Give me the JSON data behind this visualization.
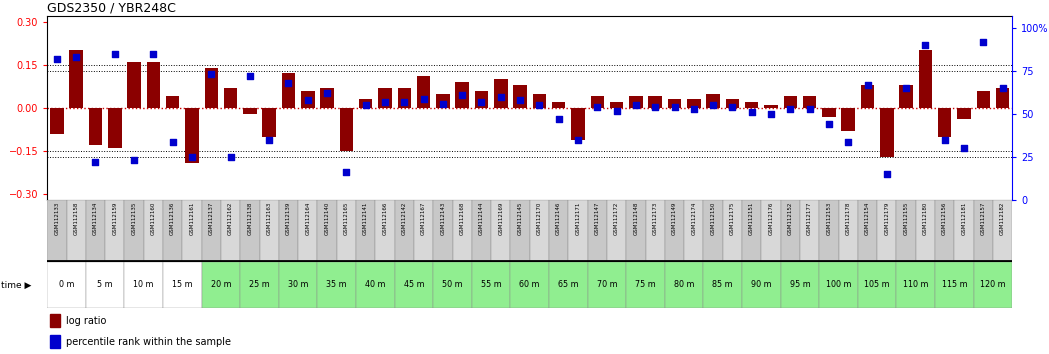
{
  "title": "GDS2350 / YBR248C",
  "gsm_labels": [
    "GSM112133",
    "GSM112158",
    "GSM112134",
    "GSM112159",
    "GSM112135",
    "GSM112160",
    "GSM112136",
    "GSM112161",
    "GSM112137",
    "GSM112162",
    "GSM112138",
    "GSM112163",
    "GSM112139",
    "GSM112164",
    "GSM112140",
    "GSM112165",
    "GSM112141",
    "GSM112166",
    "GSM112142",
    "GSM112167",
    "GSM112143",
    "GSM112168",
    "GSM112144",
    "GSM112169",
    "GSM112145",
    "GSM112170",
    "GSM112146",
    "GSM112171",
    "GSM112147",
    "GSM112172",
    "GSM112148",
    "GSM112173",
    "GSM112149",
    "GSM112174",
    "GSM112150",
    "GSM112175",
    "GSM112151",
    "GSM112176",
    "GSM112152",
    "GSM112177",
    "GSM112153",
    "GSM112178",
    "GSM112154",
    "GSM112179",
    "GSM112155",
    "GSM112180",
    "GSM112156",
    "GSM112181",
    "GSM112157",
    "GSM112182"
  ],
  "time_labels": [
    "0 m",
    "5 m",
    "10 m",
    "15 m",
    "20 m",
    "25 m",
    "30 m",
    "35 m",
    "40 m",
    "45 m",
    "50 m",
    "55 m",
    "60 m",
    "65 m",
    "70 m",
    "75 m",
    "80 m",
    "85 m",
    "90 m",
    "95 m",
    "100 m",
    "105 m",
    "110 m",
    "115 m",
    "120 m"
  ],
  "log_ratio": [
    -0.09,
    0.2,
    -0.13,
    -0.14,
    0.16,
    0.16,
    0.04,
    -0.19,
    0.14,
    0.07,
    -0.02,
    -0.1,
    0.12,
    0.06,
    0.07,
    -0.15,
    0.03,
    0.07,
    0.07,
    0.11,
    0.05,
    0.09,
    0.06,
    0.1,
    0.08,
    0.05,
    0.02,
    -0.11,
    0.04,
    0.02,
    0.04,
    0.04,
    0.03,
    0.03,
    0.05,
    0.03,
    0.02,
    0.01,
    0.04,
    0.04,
    -0.03,
    -0.08,
    0.08,
    -0.17,
    0.08,
    0.2,
    -0.1,
    -0.04,
    0.06,
    0.07
  ],
  "percentile": [
    82,
    83,
    22,
    85,
    23,
    85,
    34,
    25,
    73,
    25,
    72,
    35,
    68,
    58,
    62,
    16,
    55,
    57,
    57,
    59,
    56,
    61,
    57,
    60,
    58,
    55,
    47,
    35,
    54,
    52,
    55,
    54,
    54,
    53,
    55,
    54,
    51,
    50,
    53,
    53,
    44,
    34,
    67,
    15,
    65,
    90,
    35,
    30,
    92,
    65
  ],
  "bar_color": "#8B0000",
  "dot_color": "#0000CD",
  "zero_line_color": "#CC0000",
  "ylim_left": [
    -0.32,
    0.32
  ],
  "ylim_right": [
    0,
    107
  ],
  "yticks_left": [
    -0.3,
    -0.15,
    0,
    0.15,
    0.3
  ],
  "yticks_right": [
    0,
    25,
    50,
    75,
    100
  ],
  "n_white_times": 4,
  "green_bg": "#90EE90",
  "white_bg": "#ffffff",
  "gsm_bg_even": "#c8c8c8",
  "gsm_bg_odd": "#d8d8d8"
}
